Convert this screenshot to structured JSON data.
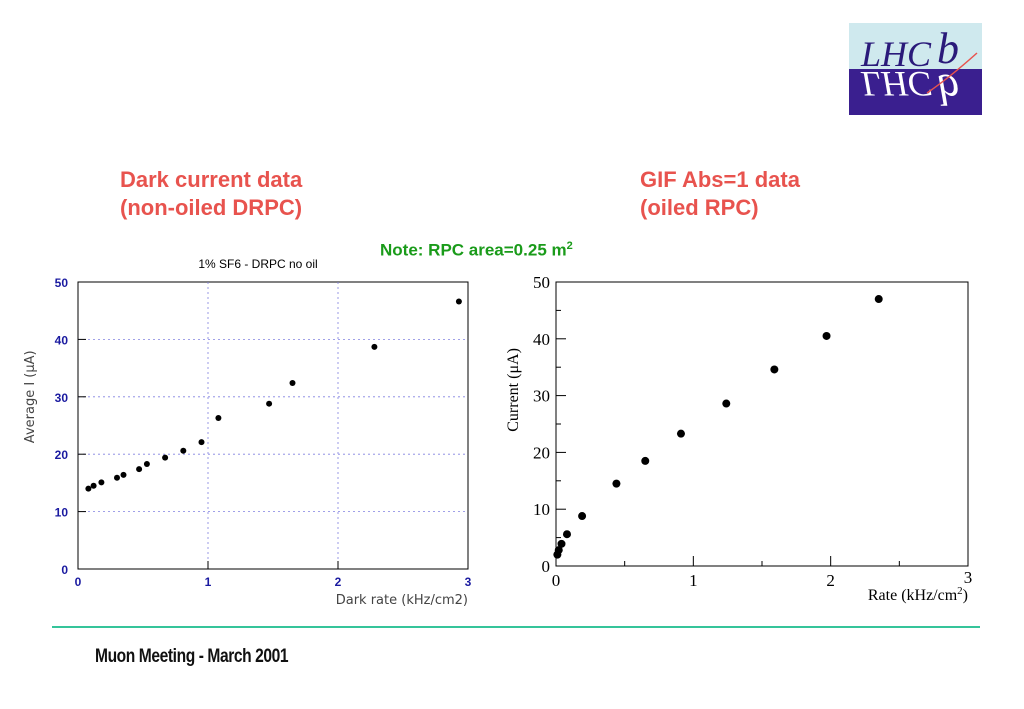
{
  "logo": {
    "text": "LHCb",
    "colors": {
      "top": "#cfe9ee",
      "bottom": "#3a1f8f",
      "text_top": "#2a1a7a",
      "text_bottom": "#ffffff"
    }
  },
  "headings": {
    "left": [
      "Dark current data",
      "(non-oiled DRPC)"
    ],
    "right": [
      "GIF Abs=1 data",
      "(oiled RPC)"
    ]
  },
  "note": {
    "text": "Note: RPC area=0.25 m",
    "sup": "2"
  },
  "footer": "Muon Meeting - March 2001",
  "colors": {
    "heading": "#e8534e",
    "note": "#1a9b1a",
    "axis_left": "#1a1aa0",
    "divider": "#35c49a"
  },
  "chart_data": [
    {
      "type": "scatter",
      "title": "1% SF6 - DRPC no oil",
      "xlabel": "Dark rate (kHz/cm2)",
      "ylabel": "Average I (μA)",
      "xlim": [
        0,
        3
      ],
      "ylim": [
        0,
        50
      ],
      "xticks": [
        "0",
        "1",
        "2",
        "3"
      ],
      "yticks": [
        "0",
        "10",
        "20",
        "30",
        "40",
        "50"
      ],
      "grid": true,
      "points": [
        {
          "x": 0.08,
          "y": 14.0
        },
        {
          "x": 0.12,
          "y": 14.5
        },
        {
          "x": 0.18,
          "y": 15.1
        },
        {
          "x": 0.3,
          "y": 15.9
        },
        {
          "x": 0.35,
          "y": 16.4
        },
        {
          "x": 0.47,
          "y": 17.4
        },
        {
          "x": 0.53,
          "y": 18.3
        },
        {
          "x": 0.67,
          "y": 19.4
        },
        {
          "x": 0.81,
          "y": 20.6
        },
        {
          "x": 0.95,
          "y": 22.1
        },
        {
          "x": 1.08,
          "y": 26.3
        },
        {
          "x": 1.47,
          "y": 28.8
        },
        {
          "x": 1.65,
          "y": 32.4
        },
        {
          "x": 2.28,
          "y": 38.7
        },
        {
          "x": 2.93,
          "y": 46.6
        }
      ]
    },
    {
      "type": "scatter",
      "title": "",
      "xlabel": "Rate (kHz/cm",
      "xlabel_sup": "2",
      "xlabel_end": ")",
      "ylabel": "Current (μA)",
      "xlim": [
        0,
        3
      ],
      "ylim": [
        0,
        50
      ],
      "xticks": [
        "0",
        "1",
        "2",
        "3"
      ],
      "yticks": [
        "0",
        "10",
        "20",
        "30",
        "40",
        "50"
      ],
      "grid": false,
      "points": [
        {
          "x": 0.01,
          "y": 2.0
        },
        {
          "x": 0.02,
          "y": 2.8
        },
        {
          "x": 0.04,
          "y": 3.9
        },
        {
          "x": 0.08,
          "y": 5.6
        },
        {
          "x": 0.19,
          "y": 8.8
        },
        {
          "x": 0.44,
          "y": 14.5
        },
        {
          "x": 0.65,
          "y": 18.5
        },
        {
          "x": 0.91,
          "y": 23.3
        },
        {
          "x": 1.24,
          "y": 28.6
        },
        {
          "x": 1.59,
          "y": 34.6
        },
        {
          "x": 1.97,
          "y": 40.5
        },
        {
          "x": 2.35,
          "y": 47.0
        }
      ]
    }
  ]
}
